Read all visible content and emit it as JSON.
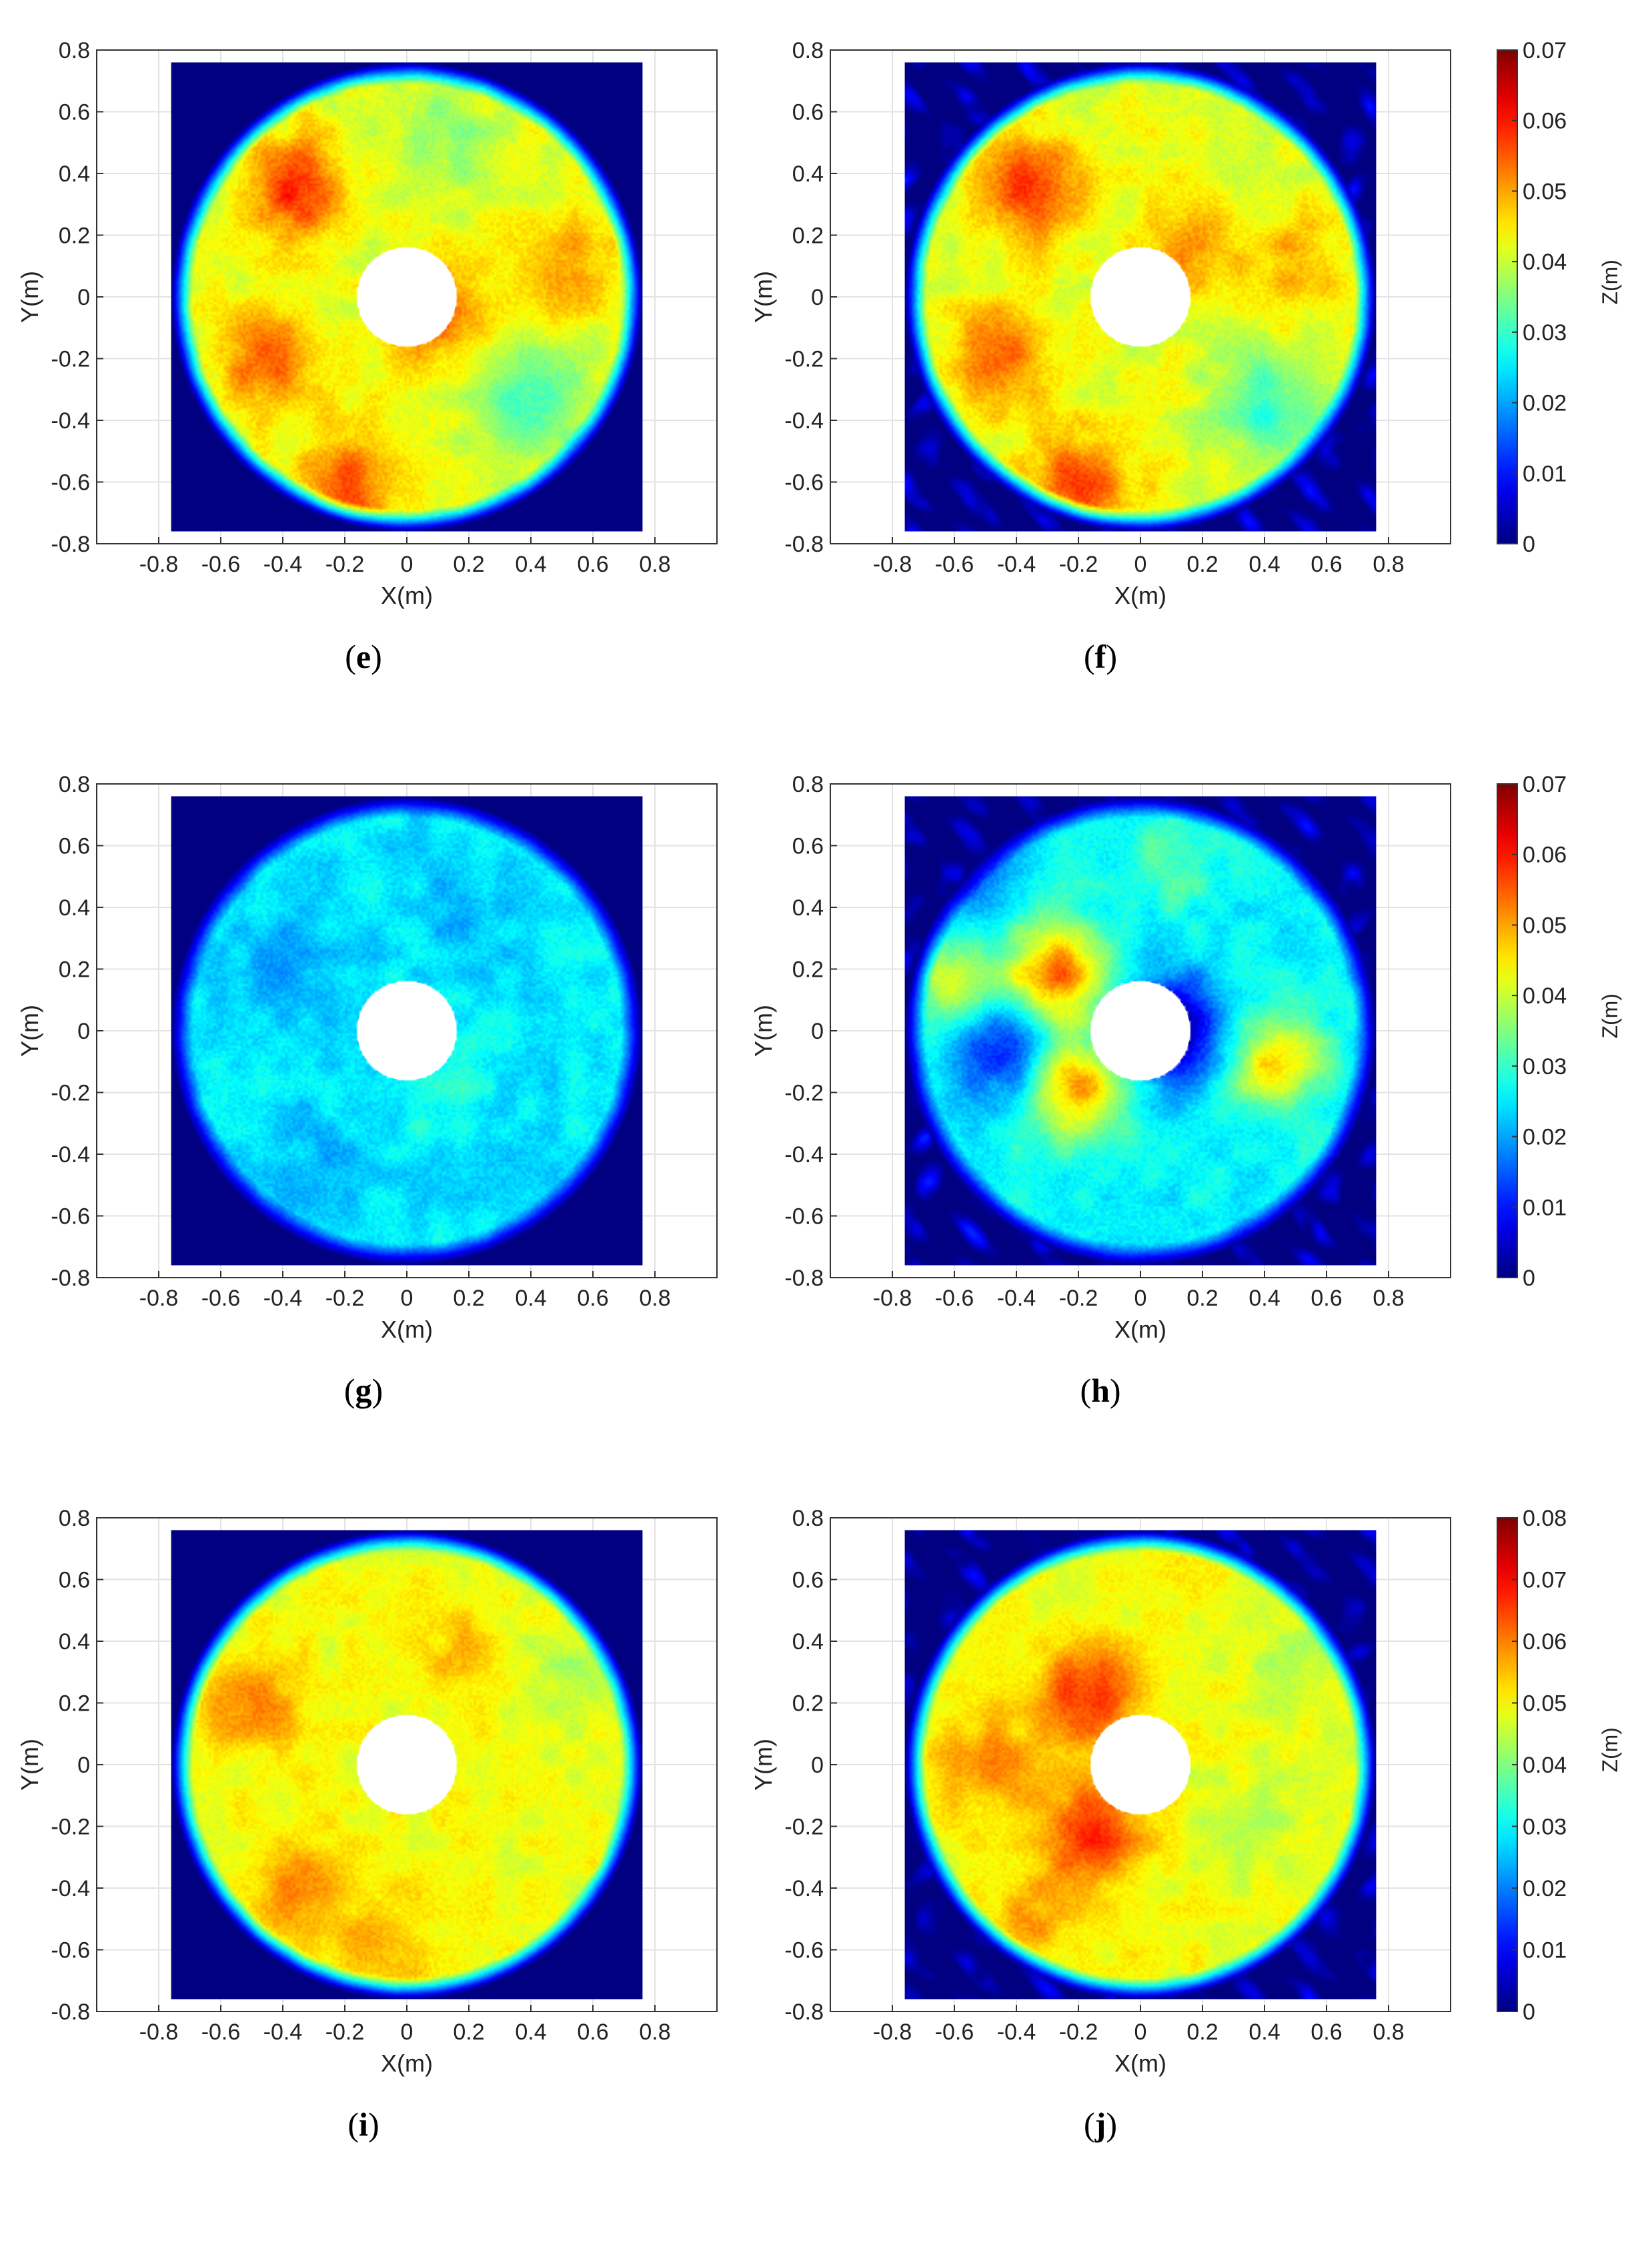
{
  "figure": {
    "captions": [
      {
        "open": "(",
        "letter": "e",
        "close": ")"
      },
      {
        "open": "(",
        "letter": "f",
        "close": ")"
      },
      {
        "open": "(",
        "letter": "g",
        "close": ")"
      },
      {
        "open": "(",
        "letter": "h",
        "close": ")"
      },
      {
        "open": "(",
        "letter": "i",
        "close": ")"
      },
      {
        "open": "(",
        "letter": "j",
        "close": ")"
      }
    ]
  },
  "chart_data": [
    {
      "panel": "e",
      "type": "heatmap",
      "xlabel": "X(m)",
      "ylabel": "Y(m)",
      "xticks": [
        "-0.8",
        "-0.6",
        "-0.4",
        "-0.2",
        "0",
        "0.2",
        "0.4",
        "0.6",
        "0.8"
      ],
      "yticks": [
        "0.8",
        "0.6",
        "0.4",
        "0.2",
        "0",
        "-0.2",
        "-0.4",
        "-0.6",
        "-0.8"
      ],
      "xlim": [
        -1.0,
        1.0
      ],
      "ylim": [
        -0.8,
        0.8
      ],
      "field_extent": [
        -0.76,
        0.76
      ],
      "outer_radius_m": 0.76,
      "inner_radius_m": 0.16,
      "mean_z": 0.042,
      "hotspots": [
        [
          -0.35,
          0.35,
          0.017
        ],
        [
          -0.2,
          -0.6,
          0.014
        ],
        [
          -0.45,
          -0.2,
          0.013
        ],
        [
          0.1,
          -0.05,
          0.012
        ],
        [
          0.55,
          0.1,
          0.008
        ]
      ],
      "coolspots": [
        [
          0.4,
          -0.35,
          0.012
        ],
        [
          0.1,
          0.5,
          0.006
        ]
      ],
      "ripples": false,
      "grid": true
    },
    {
      "panel": "f",
      "type": "heatmap",
      "xlabel": "X(m)",
      "ylabel": "Y(m)",
      "xticks": [
        "-0.8",
        "-0.6",
        "-0.4",
        "-0.2",
        "0",
        "0.2",
        "0.4",
        "0.6",
        "0.8"
      ],
      "yticks": [
        "0.8",
        "0.6",
        "0.4",
        "0.2",
        "0",
        "-0.2",
        "-0.4",
        "-0.6",
        "-0.8"
      ],
      "xlim": [
        -1.0,
        1.0
      ],
      "ylim": [
        -0.8,
        0.8
      ],
      "field_extent": [
        -0.76,
        0.76
      ],
      "outer_radius_m": 0.76,
      "inner_radius_m": 0.16,
      "mean_z": 0.042,
      "hotspots": [
        [
          -0.35,
          0.35,
          0.016
        ],
        [
          -0.2,
          -0.6,
          0.014
        ],
        [
          -0.45,
          -0.2,
          0.013
        ],
        [
          0.15,
          0.15,
          0.01
        ],
        [
          0.5,
          0.1,
          0.008
        ]
      ],
      "coolspots": [
        [
          0.4,
          -0.35,
          0.012
        ]
      ],
      "ripples": true,
      "grid": true
    },
    {
      "panel": "g",
      "type": "heatmap",
      "xlabel": "X(m)",
      "ylabel": "Y(m)",
      "xticks": [
        "-0.8",
        "-0.6",
        "-0.4",
        "-0.2",
        "0",
        "0.2",
        "0.4",
        "0.6",
        "0.8"
      ],
      "yticks": [
        "0.8",
        "0.6",
        "0.4",
        "0.2",
        "0",
        "-0.2",
        "-0.4",
        "-0.6",
        "-0.8"
      ],
      "xlim": [
        -1.0,
        1.0
      ],
      "ylim": [
        -0.8,
        0.8
      ],
      "field_extent": [
        -0.76,
        0.76
      ],
      "outer_radius_m": 0.76,
      "inner_radius_m": 0.16,
      "mean_z": 0.025,
      "hotspots": [
        [
          0.1,
          -0.2,
          0.004
        ]
      ],
      "coolspots": [
        [
          -0.4,
          0.2,
          0.005
        ],
        [
          0.2,
          0.4,
          0.004
        ],
        [
          -0.3,
          -0.45,
          0.004
        ]
      ],
      "ripples": false,
      "grid": true
    },
    {
      "panel": "h",
      "type": "heatmap",
      "xlabel": "X(m)",
      "ylabel": "Y(m)",
      "xticks": [
        "-0.8",
        "-0.6",
        "-0.4",
        "-0.2",
        "0",
        "0.2",
        "0.4",
        "0.6",
        "0.8"
      ],
      "yticks": [
        "0.8",
        "0.6",
        "0.4",
        "0.2",
        "0",
        "-0.2",
        "-0.4",
        "-0.6",
        "-0.8"
      ],
      "xlim": [
        -1.0,
        1.0
      ],
      "ylim": [
        -0.8,
        0.8
      ],
      "field_extent": [
        -0.76,
        0.76
      ],
      "outer_radius_m": 0.76,
      "inner_radius_m": 0.16,
      "mean_z": 0.026,
      "hotspots": [
        [
          -0.27,
          0.18,
          0.028
        ],
        [
          -0.2,
          -0.18,
          0.026
        ],
        [
          0.43,
          -0.1,
          0.02
        ],
        [
          -0.6,
          0.15,
          0.015
        ],
        [
          0.1,
          0.55,
          0.006
        ]
      ],
      "coolspots": [
        [
          0.1,
          0.0,
          0.026
        ],
        [
          -0.45,
          -0.05,
          0.016
        ],
        [
          -0.6,
          0.55,
          0.012
        ]
      ],
      "ripples": true,
      "grid": true
    },
    {
      "panel": "i",
      "type": "heatmap",
      "xlabel": "X(m)",
      "ylabel": "Y(m)",
      "xticks": [
        "-0.8",
        "-0.6",
        "-0.4",
        "-0.2",
        "0",
        "0.2",
        "0.4",
        "0.6",
        "0.8"
      ],
      "yticks": [
        "0.8",
        "0.6",
        "0.4",
        "0.2",
        "0",
        "-0.2",
        "-0.4",
        "-0.6",
        "-0.8"
      ],
      "xlim": [
        -1.0,
        1.0
      ],
      "ylim": [
        -0.8,
        0.8
      ],
      "field_extent": [
        -0.76,
        0.76
      ],
      "outer_radius_m": 0.76,
      "inner_radius_m": 0.16,
      "mean_z": 0.049,
      "hotspots": [
        [
          -0.5,
          0.2,
          0.01
        ],
        [
          -0.35,
          -0.4,
          0.009
        ],
        [
          0.2,
          0.35,
          0.006
        ],
        [
          -0.1,
          -0.6,
          0.008
        ]
      ],
      "coolspots": [
        [
          0.5,
          0.3,
          0.005
        ]
      ],
      "ripples": false,
      "grid": true
    },
    {
      "panel": "j",
      "type": "heatmap",
      "xlabel": "X(m)",
      "ylabel": "Y(m)",
      "xticks": [
        "-0.8",
        "-0.6",
        "-0.4",
        "-0.2",
        "0",
        "0.2",
        "0.4",
        "0.6",
        "0.8"
      ],
      "yticks": [
        "0.8",
        "0.6",
        "0.4",
        "0.2",
        "0",
        "-0.2",
        "-0.4",
        "-0.6",
        "-0.8"
      ],
      "xlim": [
        -1.0,
        1.0
      ],
      "ylim": [
        -0.8,
        0.8
      ],
      "field_extent": [
        -0.76,
        0.76
      ],
      "outer_radius_m": 0.76,
      "inner_radius_m": 0.16,
      "mean_z": 0.049,
      "hotspots": [
        [
          -0.17,
          0.22,
          0.018
        ],
        [
          -0.15,
          -0.22,
          0.018
        ],
        [
          -0.5,
          0.0,
          0.01
        ],
        [
          -0.35,
          -0.5,
          0.008
        ]
      ],
      "coolspots": [
        [
          0.5,
          0.3,
          0.005
        ],
        [
          0.35,
          -0.2,
          0.004
        ]
      ],
      "ripples": true,
      "grid": true
    }
  ],
  "colorbars": [
    {
      "label": "Z(m)",
      "min": 0,
      "max": 0.07,
      "ticks": [
        "0.07",
        "0.06",
        "0.05",
        "0.04",
        "0.03",
        "0.02",
        "0.01",
        "0"
      ],
      "colormap": "jet"
    },
    {
      "label": "Z(m)",
      "min": 0,
      "max": 0.07,
      "ticks": [
        "0.07",
        "0.06",
        "0.05",
        "0.04",
        "0.03",
        "0.02",
        "0.01",
        "0"
      ],
      "colormap": "jet"
    },
    {
      "label": "Z(m)",
      "min": 0,
      "max": 0.08,
      "ticks": [
        "0.08",
        "0.07",
        "0.06",
        "0.05",
        "0.04",
        "0.03",
        "0.02",
        "0.01",
        "0"
      ],
      "colormap": "jet"
    }
  ],
  "colors": {
    "background": "#ffffff",
    "axis": "#000000",
    "grid": "#e3e3e3",
    "hole": "#ffffff"
  }
}
